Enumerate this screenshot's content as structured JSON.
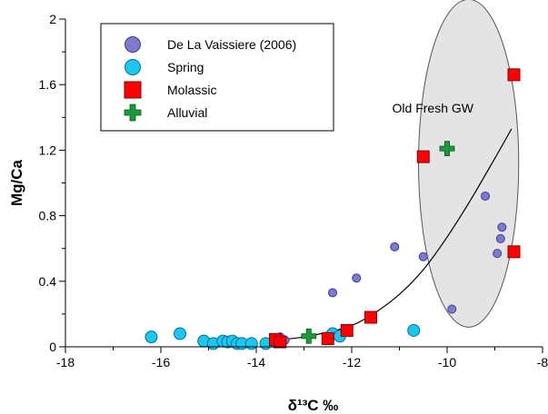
{
  "chart_data": {
    "type": "scatter",
    "xlabel": "δ¹³C ‰",
    "ylabel": "Mg/Ca",
    "xlim": [
      -18,
      -8
    ],
    "ylim": [
      0,
      2
    ],
    "x_ticks": [
      -18,
      -16,
      -14,
      -12,
      -10,
      -8
    ],
    "y_ticks": [
      0,
      0.4,
      0.8,
      1.2,
      1.6,
      2
    ],
    "y_tick_labels": [
      "0",
      "0.4",
      "0.8",
      "1.2",
      "1.6",
      "2"
    ],
    "grid": false,
    "legend_position": "top-left",
    "series": [
      {
        "name": "De La Vaissiere (2006)",
        "marker": "circle",
        "color": "#7b7bd0",
        "edge": "#3a3a9a",
        "points": [
          [
            -13.5,
            0.06
          ],
          [
            -13.4,
            0.04
          ],
          [
            -12.4,
            0.33
          ],
          [
            -11.9,
            0.42
          ],
          [
            -11.1,
            0.61
          ],
          [
            -10.5,
            0.55
          ],
          [
            -9.9,
            0.23
          ],
          [
            -9.2,
            0.92
          ],
          [
            -8.95,
            0.57
          ],
          [
            -8.88,
            0.66
          ],
          [
            -8.85,
            0.73
          ]
        ]
      },
      {
        "name": "Spring",
        "marker": "circle",
        "color": "#19c8f0",
        "edge": "#0a6e9a",
        "points": [
          [
            -16.2,
            0.06
          ],
          [
            -15.6,
            0.08
          ],
          [
            -15.1,
            0.035
          ],
          [
            -14.9,
            0.02
          ],
          [
            -14.7,
            0.035
          ],
          [
            -14.6,
            0.03
          ],
          [
            -14.5,
            0.035
          ],
          [
            -14.4,
            0.02
          ],
          [
            -14.3,
            0.02
          ],
          [
            -14.1,
            0.02
          ],
          [
            -13.8,
            0.02
          ],
          [
            -13.6,
            0.03
          ],
          [
            -12.4,
            0.08
          ],
          [
            -12.25,
            0.065
          ],
          [
            -10.7,
            0.1
          ]
        ]
      },
      {
        "name": "Molassic",
        "marker": "square",
        "color": "#ff0000",
        "edge": "#8a0000",
        "points": [
          [
            -13.6,
            0.045
          ],
          [
            -13.5,
            0.03
          ],
          [
            -12.5,
            0.05
          ],
          [
            -12.1,
            0.1
          ],
          [
            -11.6,
            0.18
          ],
          [
            -10.5,
            1.16
          ],
          [
            -8.6,
            0.58
          ],
          [
            -8.6,
            1.66
          ]
        ]
      },
      {
        "name": "Alluvial",
        "marker": "cross",
        "color": "#1a9a3a",
        "edge": "#0a5a1a",
        "points": [
          [
            -12.9,
            0.065
          ],
          [
            -10.0,
            1.21
          ]
        ]
      }
    ],
    "trend_line": [
      [
        -13.6,
        0.04
      ],
      [
        -13.0,
        0.06
      ],
      [
        -12.5,
        0.09
      ],
      [
        -12.0,
        0.13
      ],
      [
        -11.5,
        0.21
      ],
      [
        -11.0,
        0.32
      ],
      [
        -10.5,
        0.47
      ],
      [
        -10.0,
        0.67
      ],
      [
        -9.5,
        0.9
      ],
      [
        -9.0,
        1.15
      ],
      [
        -8.65,
        1.33
      ]
    ],
    "annotation": {
      "text": "Old Fresh GW",
      "x": -10.3,
      "y": 1.43
    },
    "ellipse": {
      "cx": -9.55,
      "cy": 1.12,
      "rx": 1.05,
      "ry": 1.0,
      "fill": "#e4e4e4",
      "stroke": "#555555"
    }
  }
}
